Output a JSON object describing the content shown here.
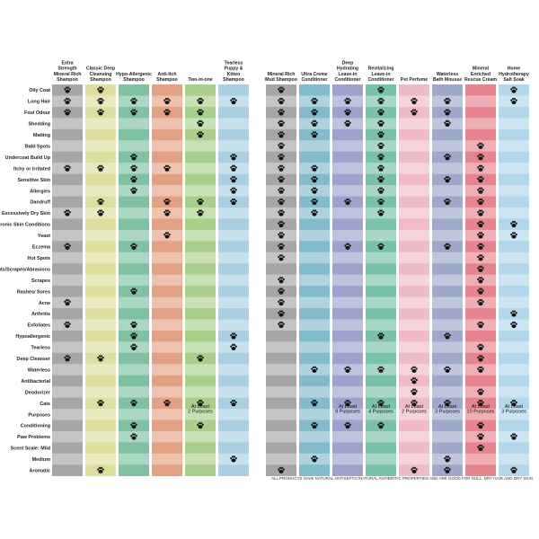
{
  "chart_data": {
    "type": "table",
    "columns": [
      "Extra Strength Mineral Rich Shampoo",
      "Classic Deep Cleansing Shampoo",
      "Hypo-Allergenic Shampoo",
      "Anti-Itch Shampoo",
      "Two-in-one",
      "Tearless Puppy & Kitten Shampoo",
      "Mineral Rich Mud Shampoo",
      "Ultra Creme Conditioner",
      "Deep Hydrating Leave-in Conditioner",
      "Revitalizing Leave-in Conditioner",
      "Pet Perfume",
      "Waterless Bath Mousse",
      "Mineral Enriched Rescue Cream",
      "Home Hydrotherapy Salt Soak"
    ],
    "column_colors": [
      "#a6a6a6",
      "#dedf9e",
      "#7fc1a1",
      "#e3a183",
      "#a9cf8b",
      "#a9cfe0",
      "#a6a6a6",
      "#82bccb",
      "#9da3cc",
      "#79c1a8",
      "#eebbc6",
      "#9ea8c9",
      "#e6848f",
      "#b3d7e9"
    ],
    "rows": [
      "Oily Coat",
      "Long Hair",
      "Foul Odour",
      "Shedding",
      "Matting",
      "Bald Spots",
      "Undercoat Build Up",
      "Itchy or Irritated",
      "Sensitive Skin",
      "Allergies",
      "Dandruff",
      "Excessively Dry Skin",
      "Chronic Skin Conditions",
      "Yeast",
      "Eczema",
      "Hot Spots",
      "Cuts/Scrapes/Abrasions",
      "Scrapes",
      "Rashes/ Sores",
      "Acne",
      "Arthritis",
      "Exfoliates",
      "Hypoallergenic",
      "Tearless",
      "Deep Cleanser",
      "Waterless",
      "Antibacterial",
      "Deodorizer",
      "Cats",
      "Purposes",
      "Conditioning",
      "Paw Problems",
      "Scent Scale:  Mild",
      "Medium",
      "Aromatic"
    ],
    "marks": [
      [
        1,
        1,
        0,
        0,
        0,
        0,
        1,
        0,
        0,
        1,
        0,
        0,
        0,
        1
      ],
      [
        1,
        1,
        1,
        1,
        1,
        1,
        1,
        1,
        1,
        1,
        1,
        1,
        0,
        1
      ],
      [
        1,
        1,
        1,
        1,
        1,
        0,
        1,
        1,
        1,
        1,
        1,
        1,
        0,
        0
      ],
      [
        0,
        0,
        0,
        0,
        1,
        0,
        1,
        1,
        1,
        1,
        0,
        1,
        0,
        0
      ],
      [
        0,
        0,
        0,
        0,
        1,
        0,
        1,
        1,
        0,
        1,
        0,
        0,
        0,
        0
      ],
      [
        0,
        0,
        0,
        0,
        0,
        0,
        1,
        0,
        0,
        1,
        0,
        0,
        1,
        0
      ],
      [
        0,
        0,
        1,
        0,
        0,
        1,
        1,
        0,
        0,
        1,
        0,
        1,
        1,
        0
      ],
      [
        1,
        1,
        1,
        1,
        0,
        1,
        1,
        1,
        0,
        1,
        0,
        0,
        1,
        0
      ],
      [
        0,
        0,
        1,
        0,
        0,
        1,
        1,
        1,
        0,
        1,
        0,
        1,
        1,
        0
      ],
      [
        0,
        0,
        1,
        0,
        0,
        1,
        1,
        1,
        0,
        1,
        0,
        0,
        1,
        0
      ],
      [
        0,
        1,
        0,
        1,
        1,
        1,
        1,
        1,
        1,
        1,
        0,
        1,
        1,
        0
      ],
      [
        1,
        1,
        0,
        1,
        1,
        0,
        1,
        1,
        0,
        1,
        0,
        0,
        1,
        0
      ],
      [
        0,
        0,
        0,
        0,
        0,
        0,
        1,
        0,
        0,
        0,
        0,
        0,
        1,
        1
      ],
      [
        0,
        0,
        0,
        1,
        0,
        0,
        1,
        0,
        0,
        0,
        0,
        0,
        1,
        1
      ],
      [
        1,
        0,
        1,
        0,
        0,
        0,
        1,
        0,
        1,
        1,
        0,
        1,
        1,
        0
      ],
      [
        0,
        0,
        0,
        0,
        0,
        0,
        1,
        0,
        0,
        0,
        0,
        0,
        1,
        0
      ],
      [
        0,
        0,
        0,
        0,
        0,
        0,
        0,
        0,
        0,
        0,
        0,
        0,
        1,
        0
      ],
      [
        0,
        0,
        0,
        0,
        0,
        0,
        1,
        0,
        0,
        0,
        0,
        0,
        1,
        0
      ],
      [
        0,
        0,
        1,
        0,
        0,
        0,
        1,
        0,
        0,
        0,
        0,
        0,
        1,
        0
      ],
      [
        1,
        0,
        0,
        0,
        0,
        0,
        1,
        0,
        0,
        0,
        0,
        0,
        1,
        0
      ],
      [
        0,
        0,
        0,
        0,
        0,
        0,
        1,
        0,
        0,
        0,
        0,
        0,
        0,
        1
      ],
      [
        1,
        0,
        1,
        0,
        0,
        0,
        1,
        0,
        0,
        0,
        0,
        0,
        1,
        1
      ],
      [
        0,
        0,
        1,
        0,
        0,
        1,
        0,
        0,
        0,
        1,
        0,
        1,
        0,
        0
      ],
      [
        0,
        0,
        1,
        0,
        0,
        1,
        0,
        0,
        0,
        0,
        0,
        0,
        1,
        0
      ],
      [
        1,
        1,
        0,
        0,
        1,
        0,
        0,
        0,
        0,
        0,
        0,
        0,
        1,
        0
      ],
      [
        0,
        0,
        0,
        0,
        0,
        0,
        0,
        1,
        1,
        1,
        1,
        1,
        1,
        0
      ],
      [
        0,
        0,
        0,
        0,
        0,
        0,
        0,
        0,
        0,
        0,
        1,
        0,
        0,
        0
      ],
      [
        0,
        0,
        0,
        0,
        0,
        0,
        0,
        0,
        0,
        0,
        1,
        0,
        1,
        0
      ],
      [
        0,
        1,
        1,
        1,
        1,
        1,
        0,
        1,
        1,
        1,
        1,
        1,
        1,
        1
      ],
      [
        0,
        0,
        0,
        0,
        0,
        0,
        0,
        0,
        0,
        0,
        0,
        0,
        0,
        0
      ],
      [
        0,
        0,
        1,
        0,
        1,
        0,
        0,
        1,
        1,
        1,
        0,
        0,
        1,
        0
      ],
      [
        0,
        0,
        1,
        0,
        0,
        0,
        0,
        0,
        0,
        0,
        0,
        0,
        1,
        1
      ],
      [
        0,
        0,
        0,
        0,
        0,
        0,
        0,
        0,
        0,
        0,
        0,
        0,
        1,
        0
      ],
      [
        0,
        0,
        0,
        0,
        0,
        1,
        0,
        1,
        0,
        0,
        0,
        1,
        0,
        0
      ],
      [
        0,
        1,
        0,
        0,
        0,
        0,
        1,
        0,
        0,
        0,
        1,
        1,
        0,
        1
      ]
    ],
    "purposes_notes": [
      "",
      "",
      "",
      "",
      "At Least 2 Purposes",
      "",
      "",
      "",
      "At Least 9 Purposes",
      "At Least 4 Purposes",
      "At Least 2 Purposes",
      "At Least 3 Purposes",
      "At Least 10 Purposes",
      "At Least 3 Purposes"
    ],
    "purposes_row_label": "Purposes",
    "mark_symbol": "paw-print-icon",
    "footnote": "ALL PRODUCTS HAVE NATURAL ANTISEPTIC/NATURAL ANTIBIOTIC PROPERTIES AND ARE GOOD FOR DULL, DRY HAIR AND DRY SKIN."
  }
}
